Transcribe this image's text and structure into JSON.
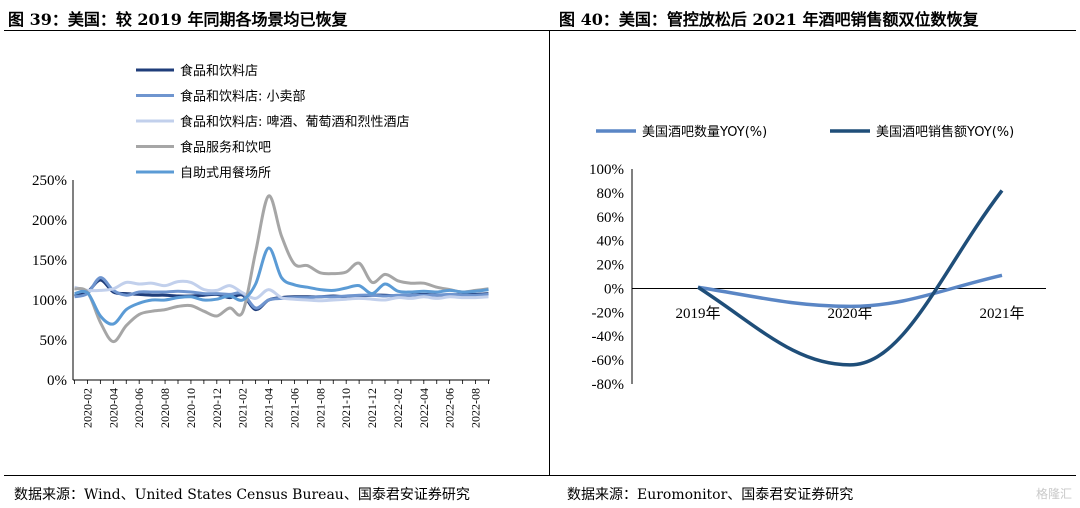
{
  "left_panel": {
    "title": "图 39：美国：较 2019 年同期各场景均已恢复",
    "source": "数据来源：Wind、United States Census Bureau、国泰君安证券研究"
  },
  "right_panel": {
    "title": "图 40：美国：管控放松后 2021 年酒吧销售额双位数恢复",
    "source": "数据来源：Euromonitor、国泰君安证券研究"
  },
  "watermark": "格隆汇",
  "chart_data": [
    {
      "type": "line",
      "title": "",
      "xlabel": "",
      "ylabel": "",
      "ylim": [
        0,
        250
      ],
      "y_unit": "%",
      "yticks": [
        "0%",
        "50%",
        "100%",
        "150%",
        "200%",
        "250%"
      ],
      "x": [
        "2020-01",
        "2020-02",
        "2020-03",
        "2020-04",
        "2020-05",
        "2020-06",
        "2020-07",
        "2020-08",
        "2020-09",
        "2020-10",
        "2020-11",
        "2020-12",
        "2021-01",
        "2021-02",
        "2021-03",
        "2021-04",
        "2021-05",
        "2021-06",
        "2021-07",
        "2021-08",
        "2021-09",
        "2021-10",
        "2021-11",
        "2021-12",
        "2022-01",
        "2022-02",
        "2022-03",
        "2022-04",
        "2022-05",
        "2022-06",
        "2022-07",
        "2022-08",
        "2022-09"
      ],
      "xticks": [
        "2020-02",
        "2020-04",
        "2020-06",
        "2020-08",
        "2020-10",
        "2020-12",
        "2021-02",
        "2021-04",
        "2021-06",
        "2021-08",
        "2021-10",
        "2021-12",
        "2022-02",
        "2022-04",
        "2022-06",
        "2022-08"
      ],
      "legend_position": "top-left",
      "series": [
        {
          "name": "食品和饮料店",
          "color": "#1f3d7a",
          "values": [
            105,
            110,
            125,
            110,
            108,
            107,
            106,
            106,
            105,
            105,
            106,
            107,
            103,
            106,
            88,
            100,
            103,
            104,
            104,
            104,
            105,
            104,
            105,
            106,
            106,
            105,
            106,
            107,
            106,
            106,
            107,
            107,
            108
          ]
        },
        {
          "name": "食品和饮料店: 小卖部",
          "color": "#6f95cf",
          "values": [
            104,
            108,
            128,
            112,
            106,
            110,
            110,
            110,
            111,
            110,
            108,
            108,
            107,
            108,
            90,
            100,
            102,
            103,
            103,
            104,
            104,
            105,
            106,
            106,
            105,
            106,
            106,
            106,
            106,
            107,
            106,
            106,
            107
          ]
        },
        {
          "name": "食品和饮料店: 啤酒、葡萄酒和烈性酒店",
          "color": "#c2d0ec",
          "values": [
            116,
            112,
            112,
            114,
            122,
            120,
            121,
            118,
            123,
            122,
            113,
            112,
            118,
            109,
            102,
            113,
            103,
            101,
            100,
            99,
            100,
            101,
            102,
            101,
            100,
            103,
            102,
            104,
            102,
            104,
            103,
            103,
            104
          ]
        },
        {
          "name": "食品服务和饮吧",
          "color": "#a6a6a6",
          "values": [
            114,
            110,
            72,
            48,
            68,
            82,
            86,
            88,
            92,
            93,
            86,
            80,
            90,
            85,
            160,
            230,
            180,
            145,
            143,
            134,
            133,
            135,
            146,
            122,
            132,
            124,
            121,
            121,
            116,
            113,
            110,
            112,
            114
          ]
        },
        {
          "name": "自助式用餐场所",
          "color": "#5b9bd5",
          "values": [
            108,
            109,
            80,
            70,
            88,
            96,
            100,
            100,
            103,
            104,
            100,
            101,
            105,
            100,
            120,
            165,
            128,
            119,
            116,
            113,
            112,
            115,
            118,
            108,
            120,
            111,
            110,
            111,
            110,
            112,
            110,
            111,
            113
          ]
        }
      ]
    },
    {
      "type": "line",
      "title": "",
      "xlabel": "",
      "ylabel": "",
      "ylim": [
        -80,
        100
      ],
      "y_unit": "%",
      "yticks": [
        "-80%",
        "-60%",
        "-40%",
        "-20%",
        "0%",
        "20%",
        "40%",
        "60%",
        "80%",
        "100%"
      ],
      "categories": [
        "2019年",
        "2020年",
        "2021年"
      ],
      "legend_position": "top",
      "series": [
        {
          "name": "美国酒吧数量YOY(%)",
          "color": "#5a86c5",
          "values": [
            1,
            -15,
            11
          ]
        },
        {
          "name": "美国酒吧销售额YOY(%)",
          "color": "#1f4e79",
          "values": [
            1,
            -64,
            82
          ]
        }
      ]
    }
  ]
}
